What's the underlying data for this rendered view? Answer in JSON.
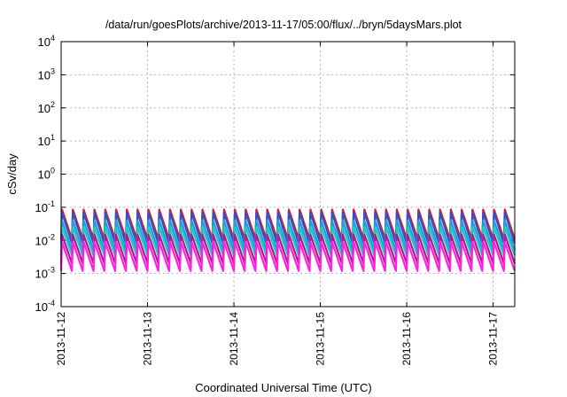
{
  "chart_data": {
    "type": "line",
    "title": "/data/run/goesPlots/archive/2013-11-17/05:00/flux/../bryn/5daysMars.plot",
    "xlabel": "Coordinated Universal Time (UTC)",
    "ylabel": "cSv/day",
    "yscale": "log",
    "ylim": [
      0.0001,
      10000
    ],
    "xlim": [
      "2013-11-12 00:00",
      "2013-11-17 06:00"
    ],
    "grid": true,
    "x_ticks": [
      "2013-11-12",
      "2013-11-13",
      "2013-11-14",
      "2013-11-15",
      "2013-11-16",
      "2013-11-17"
    ],
    "y_ticks": [
      {
        "base": "10",
        "exp": "4"
      },
      {
        "base": "10",
        "exp": "3"
      },
      {
        "base": "10",
        "exp": "2"
      },
      {
        "base": "10",
        "exp": "1"
      },
      {
        "base": "10",
        "exp": "0"
      },
      {
        "base": "10",
        "exp": "-1"
      },
      {
        "base": "10",
        "exp": "-2"
      },
      {
        "base": "10",
        "exp": "-3"
      },
      {
        "base": "10",
        "exp": "-4"
      }
    ],
    "x_hours": [
      0,
      3,
      6,
      9,
      12,
      15,
      18,
      21,
      24,
      27,
      30,
      33,
      36,
      39,
      42,
      45,
      48,
      51,
      54,
      57,
      60,
      63,
      66,
      69,
      72,
      75,
      78,
      81,
      84,
      87,
      90,
      93,
      96,
      99,
      102,
      105,
      108,
      111,
      114,
      117,
      120,
      123,
      126
    ],
    "series": [
      {
        "color": "#e31a1c",
        "peak": 0.085,
        "trough": 0.011
      },
      {
        "color": "#3050d0",
        "peak": 0.07,
        "trough": 0.008
      },
      {
        "color": "#1f9fd8",
        "peak": 0.04,
        "trough": 0.005
      },
      {
        "color": "#20c8c0",
        "peak": 0.025,
        "trough": 0.0035
      },
      {
        "color": "#b01890",
        "peak": 0.015,
        "trough": 0.002
      },
      {
        "color": "#ff20e0",
        "peak": 0.009,
        "trough": 0.0012
      }
    ]
  }
}
